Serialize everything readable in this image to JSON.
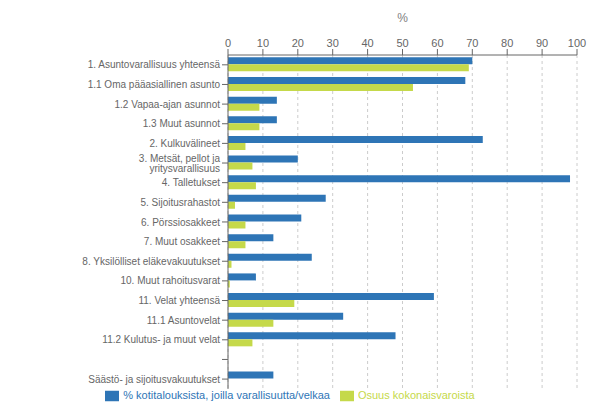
{
  "chart_data": {
    "type": "bar",
    "orientation": "horizontal",
    "xlabel": "%",
    "categories": [
      "1. Asuntovarallisuus yhteensä",
      "1.1 Oma pääasiallinen asunto",
      "1.2 Vapaa-ajan asunnot",
      "1.3 Muut asunnot",
      "2. Kulkuvälineet",
      "3. Metsät, pellot ja yritysvarallisuus",
      "4. Talletukset",
      "5. Sijoitusrahastot",
      "6. Pörssiosakkeet",
      "7. Muut osakkeet",
      "8. Yksilölliset eläkevakuutukset",
      "10. Muut rahoitusvarat",
      "11. Velat yhteensä",
      "11.1 Asuntovelat",
      "11.2 Kulutus- ja muut velat",
      null,
      "Säästö- ja sijoitusvakuutukset"
    ],
    "series": [
      {
        "name": "% kotitalouksista, joilla varallisuutta/velkaa",
        "color": "#2E75B6",
        "values": [
          70,
          68,
          14,
          14,
          73,
          20,
          98,
          28,
          21,
          13,
          24,
          8,
          59,
          33,
          48,
          0,
          13
        ]
      },
      {
        "name": "Osuus kokonaisvaroista",
        "color": "#C5D94A",
        "values": [
          69,
          53,
          9,
          9,
          5,
          7,
          8,
          2,
          5,
          5,
          1,
          0.5,
          19,
          13,
          7,
          0,
          0
        ]
      }
    ],
    "xlim": [
      0,
      100
    ],
    "xticks": [
      0,
      10,
      20,
      30,
      40,
      50,
      60,
      70,
      80,
      90,
      100
    ],
    "grid": true,
    "legend": "bottom"
  }
}
